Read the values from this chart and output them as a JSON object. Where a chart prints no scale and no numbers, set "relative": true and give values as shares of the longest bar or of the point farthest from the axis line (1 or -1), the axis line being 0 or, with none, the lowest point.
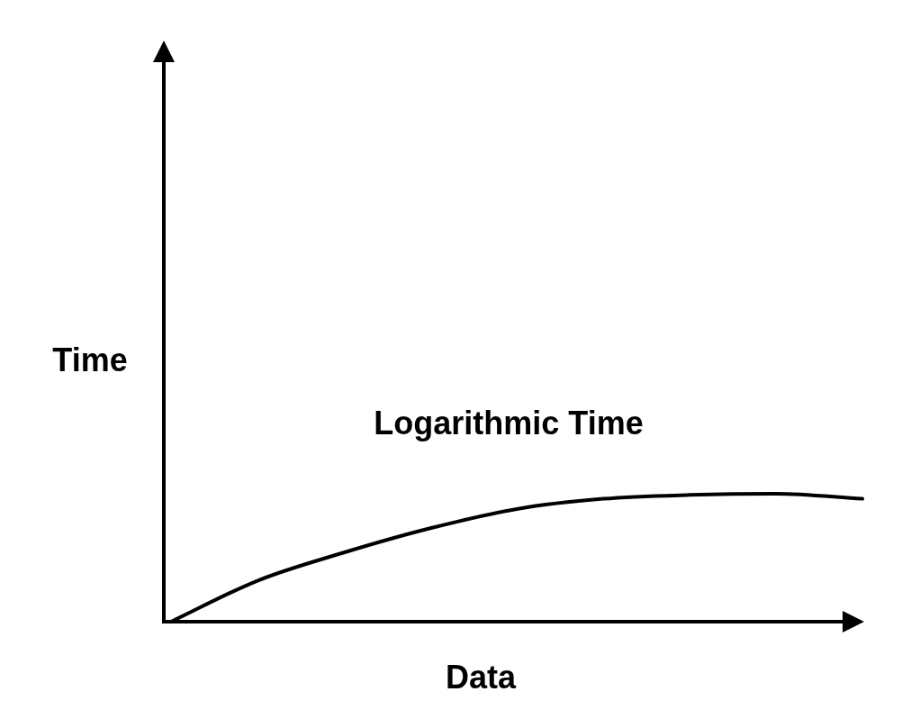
{
  "chart_data": {
    "type": "line",
    "relative": true,
    "xlabel": "Data",
    "ylabel": "Time",
    "annotations": [
      "Logarithmic Time"
    ],
    "categories": [
      null,
      null,
      null,
      null,
      null,
      null,
      null,
      null,
      null
    ],
    "series": [
      {
        "color": "#000000",
        "values": [
          0,
          0.32,
          0.54,
          0.73,
          0.88,
          0.96,
          0.99,
          1,
          0.96
        ]
      }
    ],
    "marker": "none",
    "line_style": "solid",
    "legend": false
  }
}
